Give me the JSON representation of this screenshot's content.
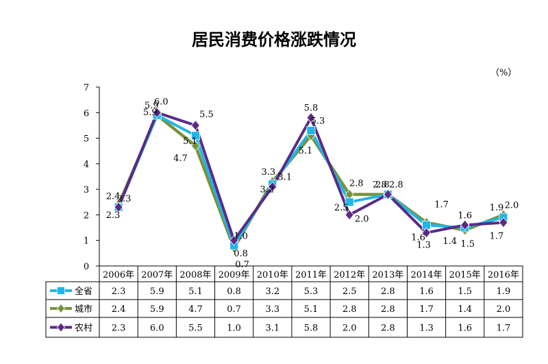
{
  "chart_data": {
    "type": "line",
    "title": "居民消费价格涨跌情况",
    "unit": "（%）",
    "categories": [
      "2006年",
      "2007年",
      "2008年",
      "2009年",
      "2010年",
      "2011年",
      "2012年",
      "2013年",
      "2014年",
      "2015年",
      "2016年"
    ],
    "ylim": [
      0,
      7
    ],
    "yticks": [
      0,
      1,
      2,
      3,
      4,
      5,
      6,
      7
    ],
    "grid": false,
    "legend": "data-table-left",
    "series": [
      {
        "name": "全省",
        "color": "#1fb6e8",
        "marker": "square",
        "values": [
          2.3,
          5.9,
          5.1,
          0.8,
          3.2,
          5.3,
          2.5,
          2.8,
          1.6,
          1.5,
          1.9
        ],
        "labels": [
          "2.3",
          "5.9",
          "5.1",
          "0.8",
          "3.2",
          "5.3",
          "2.5",
          "2.8",
          "1.6",
          "1.5",
          "1.9"
        ]
      },
      {
        "name": "城市",
        "color": "#77933c",
        "marker": "diamond",
        "values": [
          2.4,
          5.9,
          4.7,
          0.7,
          3.3,
          5.1,
          2.8,
          2.8,
          1.7,
          1.4,
          2.0
        ],
        "labels": [
          "2.4",
          "5.9",
          "4.7",
          "0.7",
          "3.3",
          "5.1",
          "2.8",
          "2.8",
          "1.7",
          "1.4",
          "2.0"
        ]
      },
      {
        "name": "农村",
        "color": "#5b2a86",
        "marker": "diamond",
        "values": [
          2.3,
          6.0,
          5.5,
          1.0,
          3.1,
          5.8,
          2.0,
          2.8,
          1.3,
          1.6,
          1.7
        ],
        "labels": [
          "2.3",
          "6.0",
          "5.5",
          "1.0",
          "3.1",
          "5.8",
          "2.0",
          "2.8",
          "1.3",
          "1.6",
          "1.7"
        ]
      }
    ],
    "table": [
      [
        "2.3",
        "5.9",
        "5.1",
        "0.8",
        "3.2",
        "5.3",
        "2.5",
        "2.8",
        "1.6",
        "1.5",
        "1.9"
      ],
      [
        "2.4",
        "5.9",
        "4.7",
        "0.7",
        "3.3",
        "5.1",
        "2.8",
        "2.8",
        "1.7",
        "1.4",
        "2.0"
      ],
      [
        "2.3",
        "6.0",
        "5.5",
        "1.0",
        "3.1",
        "5.8",
        "2.0",
        "2.8",
        "1.3",
        "1.6",
        "1.7"
      ]
    ]
  }
}
